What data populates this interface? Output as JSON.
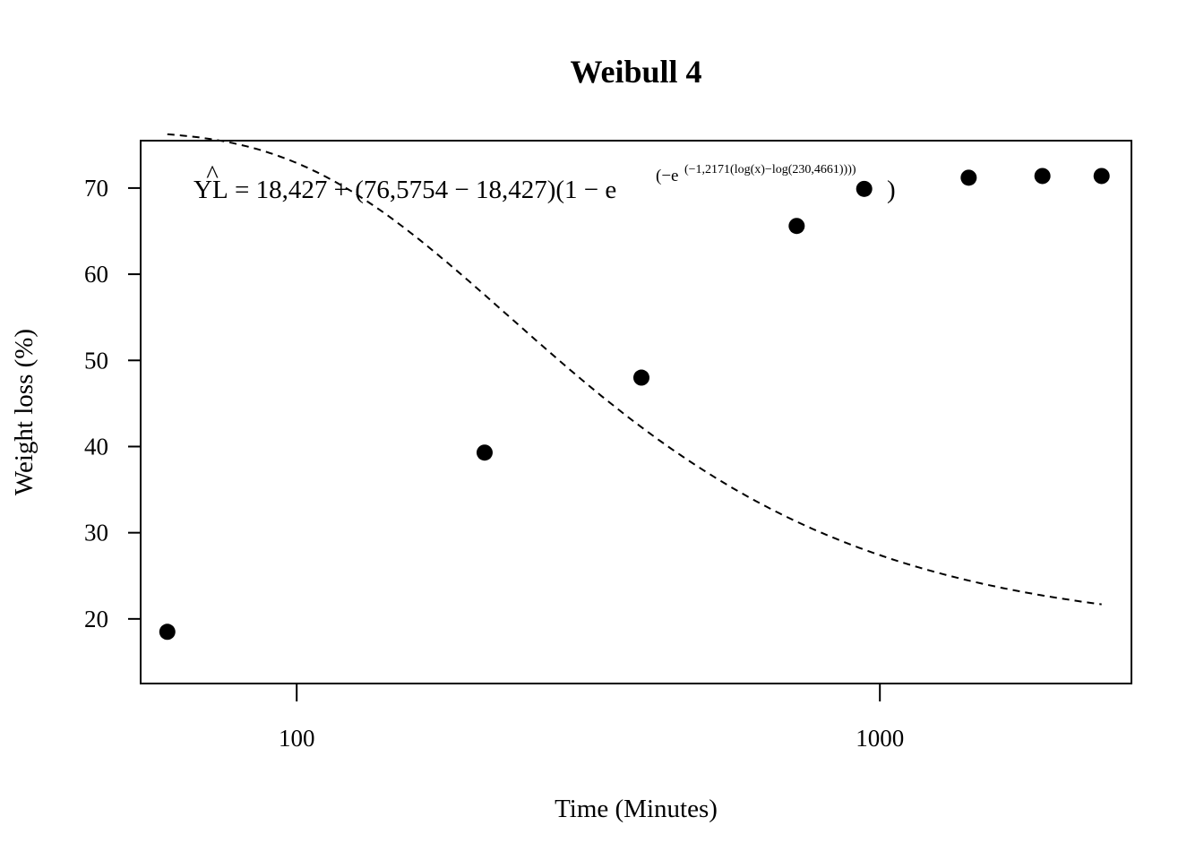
{
  "chart_data": {
    "type": "scatter",
    "title": "Weibull 4",
    "xlabel": "Time (Minutes)",
    "ylabel": "Weight loss (%)",
    "x_scale": "log",
    "xlim": [
      54,
      2700
    ],
    "ylim": [
      12.5,
      75.5
    ],
    "x_ticks": [
      100,
      1000
    ],
    "x_tick_labels": [
      "100",
      "1000"
    ],
    "y_ticks": [
      20,
      30,
      40,
      50,
      60,
      70
    ],
    "y_tick_labels": [
      "20",
      "30",
      "40",
      "50",
      "60",
      "70"
    ],
    "grid": false,
    "legend": "none",
    "points": [
      {
        "x": 60,
        "y": 18.5
      },
      {
        "x": 210,
        "y": 39.3
      },
      {
        "x": 390,
        "y": 48.0
      },
      {
        "x": 720,
        "y": 65.6
      },
      {
        "x": 940,
        "y": 69.9
      },
      {
        "x": 1420,
        "y": 71.2
      },
      {
        "x": 1900,
        "y": 71.4
      },
      {
        "x": 2400,
        "y": 71.4
      }
    ],
    "fit": {
      "model": "Weibull 4",
      "line_style": "dashed",
      "c": 18.427,
      "d": 76.5754,
      "b": -1.2171,
      "e": 230.4661,
      "x_range": [
        60,
        2400
      ]
    },
    "equation": {
      "lhs": "YL",
      "hat": "^",
      "main": "= 18,427 + (76,5754 − 18,427)(1 − e",
      "sup1": "(−e",
      "sup2": "(−1,2171(log(x)−log(230,4661))))",
      "close": ")"
    },
    "colors": {
      "points": "#000000",
      "line": "#000000",
      "frame": "#000000"
    }
  }
}
